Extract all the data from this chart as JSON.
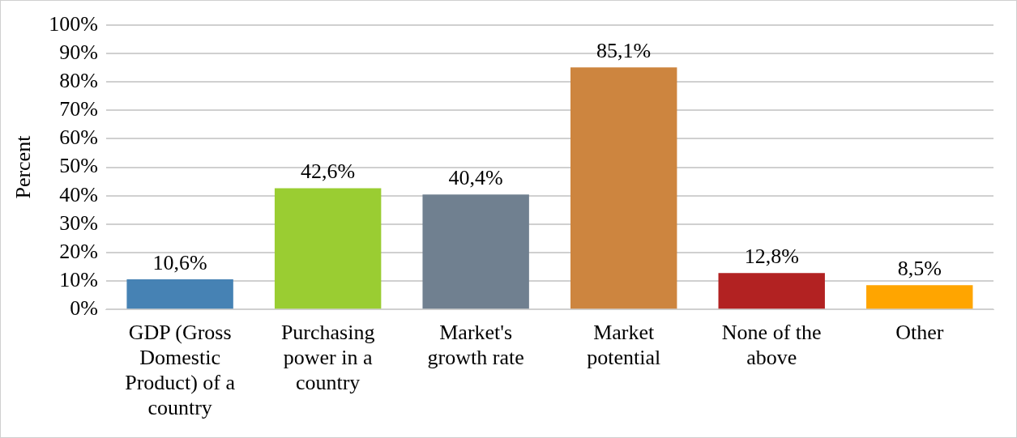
{
  "chart_data": {
    "type": "bar",
    "ylabel": "Percent",
    "categories": [
      "GDP (Gross Domestic Product) of a country",
      "Purchasing power in a country",
      "Market's growth rate",
      "Market potential",
      "None of the above",
      "Other"
    ],
    "values": [
      10.6,
      42.6,
      40.4,
      85.1,
      12.8,
      8.5
    ],
    "value_labels": [
      "10,6%",
      "42,6%",
      "40,4%",
      "85,1%",
      "12,8%",
      "8,5%"
    ],
    "colors": [
      "#4682b4",
      "#9acd32",
      "#708090",
      "#cd853f",
      "#b22222",
      "#ffa500"
    ],
    "ylim": [
      0,
      100
    ],
    "yticks": [
      {
        "value": 0,
        "label": "0%"
      },
      {
        "value": 10,
        "label": "10%"
      },
      {
        "value": 20,
        "label": "20%"
      },
      {
        "value": 30,
        "label": "30%"
      },
      {
        "value": 40,
        "label": "40%"
      },
      {
        "value": 50,
        "label": "50%"
      },
      {
        "value": 60,
        "label": "60%"
      },
      {
        "value": 70,
        "label": "70%"
      },
      {
        "value": 80,
        "label": "80%"
      },
      {
        "value": 90,
        "label": "90%"
      },
      {
        "value": 100,
        "label": "100%"
      }
    ],
    "grid": "y",
    "legend": false
  }
}
